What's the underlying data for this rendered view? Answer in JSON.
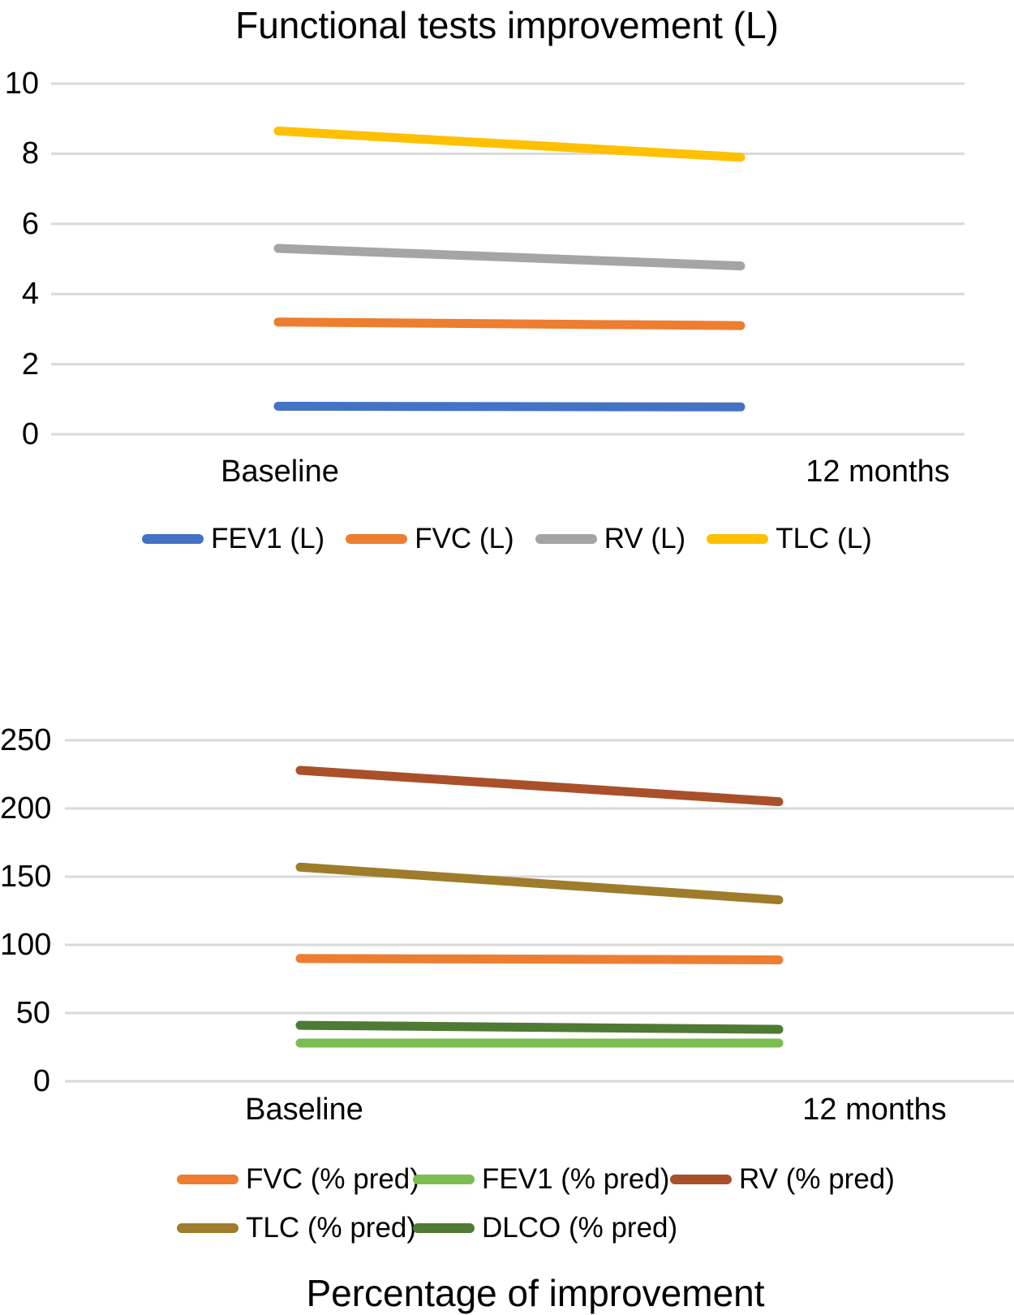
{
  "page": {
    "background": "#ffffff"
  },
  "colors": {
    "gridline": "#D9D9D9",
    "text": "#000000"
  },
  "chart_data": [
    {
      "type": "line",
      "title": "Functional tests improvement (L)",
      "x_categories": [
        "Baseline",
        "12 months"
      ],
      "xlabel": "",
      "ylabel": "",
      "ylim": [
        0,
        10
      ],
      "yticks": [
        0,
        2,
        4,
        6,
        8,
        10
      ],
      "grid": true,
      "legend_position": "bottom-center",
      "series": [
        {
          "name": "FEV1 (L)",
          "color": "#4472C4",
          "values": [
            0.8,
            0.78
          ]
        },
        {
          "name": "FVC (L)",
          "color": "#ED7D31",
          "values": [
            3.2,
            3.1
          ]
        },
        {
          "name": "RV (L)",
          "color": "#A5A5A5",
          "values": [
            5.3,
            4.8
          ]
        },
        {
          "name": "TLC (L)",
          "color": "#FFC000",
          "values": [
            8.65,
            7.9
          ]
        }
      ]
    },
    {
      "type": "line",
      "title": "Percentage of improvement",
      "x_categories": [
        "Baseline",
        "12 months"
      ],
      "xlabel": "",
      "ylabel": "",
      "ylim": [
        0,
        250
      ],
      "yticks": [
        0,
        50,
        100,
        150,
        200,
        250
      ],
      "grid": true,
      "legend_position": "bottom-two-rows",
      "series": [
        {
          "name": "FVC (% pred)",
          "color": "#ED7D31",
          "values": [
            90,
            89
          ]
        },
        {
          "name": "FEV1 (% pred)",
          "color": "#7ABD50",
          "values": [
            28,
            28
          ]
        },
        {
          "name": "RV (% pred)",
          "color": "#A9502A",
          "values": [
            228,
            205
          ]
        },
        {
          "name": "TLC (% pred)",
          "color": "#9E7C2B",
          "values": [
            157,
            133
          ]
        },
        {
          "name": "DLCO (% pred)",
          "color": "#4F7A33",
          "values": [
            41,
            38
          ]
        }
      ]
    }
  ]
}
